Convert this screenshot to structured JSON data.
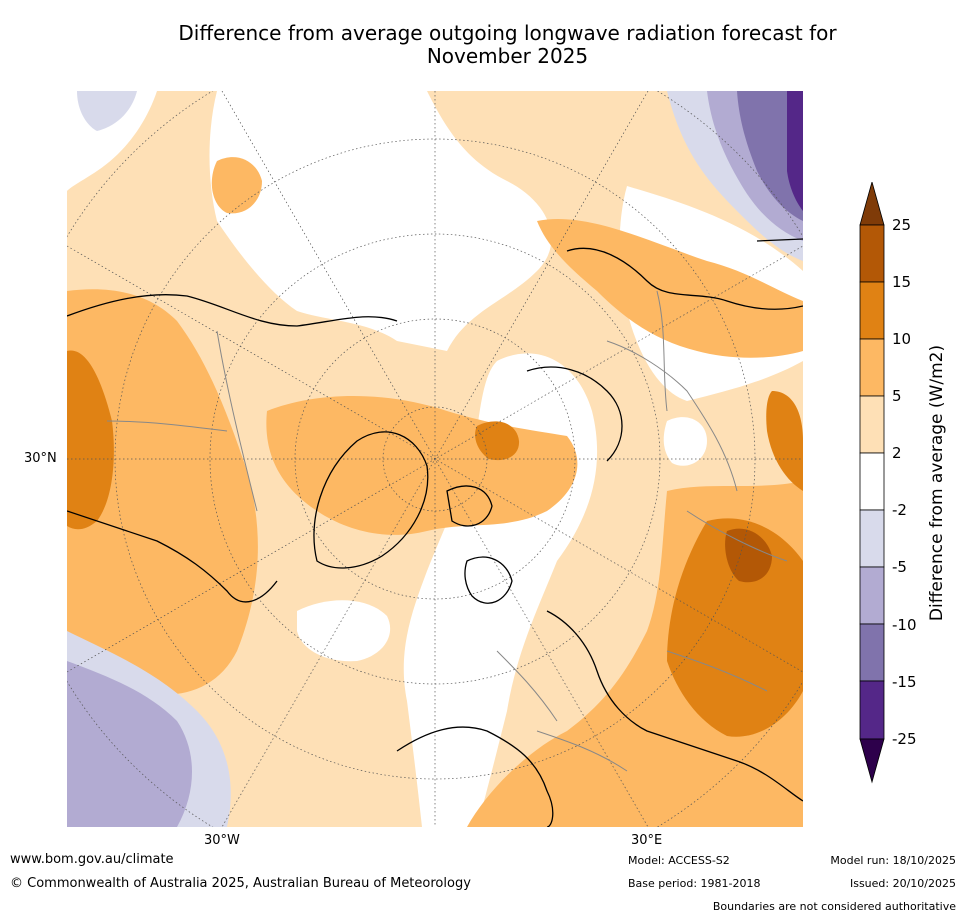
{
  "title": {
    "line1": "Difference from average outgoing longwave radiation forecast for",
    "line2": "November 2025"
  },
  "map": {
    "projection": "north-polar-stereographic",
    "lat_label": "30°N",
    "lon_labels": [
      "30°W",
      "30°E"
    ]
  },
  "colorbar": {
    "label": "Difference from average (W/m2)",
    "ticks": [
      "25",
      "15",
      "10",
      "5",
      "2",
      "-2",
      "-5",
      "-10",
      "-15",
      "-25"
    ],
    "colors": {
      "gt25": "#7f3b08",
      "15_25": "#b35806",
      "10_15": "#e08214",
      "5_10": "#fdb863",
      "2_5": "#fee0b6",
      "m2_2": "#ffffff",
      "m5_m2": "#d8daeb",
      "m10_m5": "#b2abd2",
      "m15_m10": "#8073ac",
      "m25_m15": "#542788",
      "lt_m25": "#2d004b"
    }
  },
  "footer": {
    "website": "www.bom.gov.au/climate",
    "copyright": "© Commonwealth of Australia 2025, Australian Bureau of Meteorology",
    "model": "Model: ACCESS-S2",
    "base_period": "Base period: 1981-2018",
    "model_run": "Model run: 18/10/2025",
    "issued": "Issued: 20/10/2025",
    "disclaimer": "Boundaries are not considered authoritative"
  }
}
